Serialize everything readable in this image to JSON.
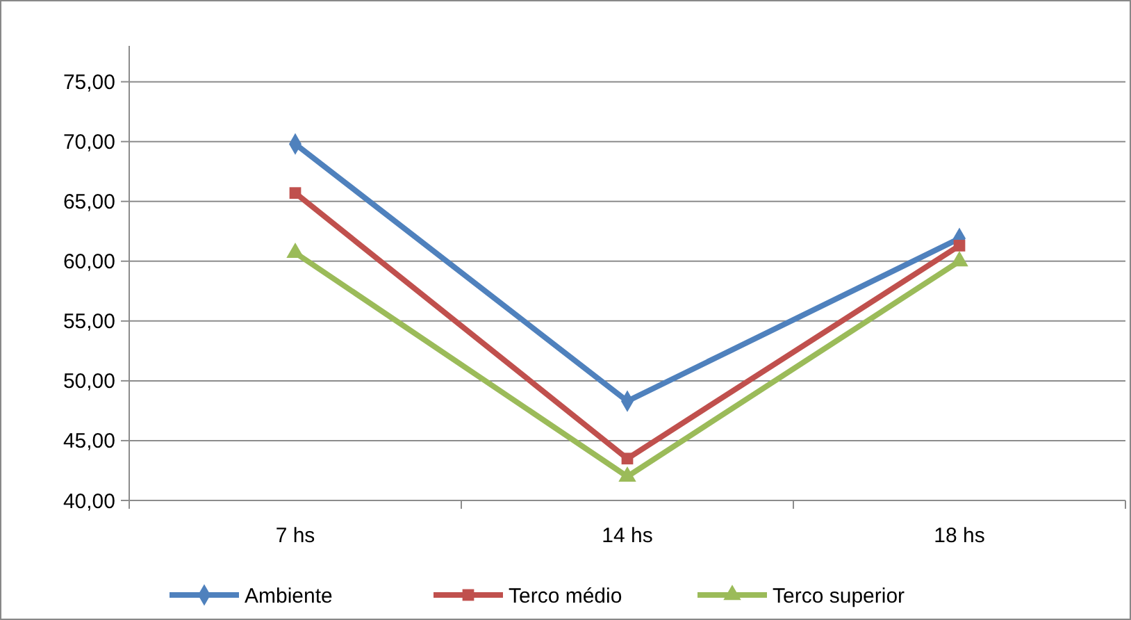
{
  "chart_data": {
    "type": "line",
    "categories": [
      "7 hs",
      "14 hs",
      "18 hs"
    ],
    "series": [
      {
        "name": "Ambiente",
        "color": "#4f81bd",
        "marker": "diamond",
        "values": [
          69.8,
          48.3,
          61.9
        ]
      },
      {
        "name": "Terco médio",
        "color": "#c0504d",
        "marker": "square",
        "values": [
          65.7,
          43.5,
          61.3
        ]
      },
      {
        "name": "Terco superior",
        "color": "#9bbb59",
        "marker": "triangle",
        "values": [
          60.7,
          42.0,
          60.0
        ]
      }
    ],
    "ylim": [
      40,
      78
    ],
    "yticks": [
      {
        "value": 40,
        "label": "40,00"
      },
      {
        "value": 45,
        "label": "45,00"
      },
      {
        "value": 50,
        "label": "50,00"
      },
      {
        "value": 55,
        "label": "55,00"
      },
      {
        "value": 60,
        "label": "60,00"
      },
      {
        "value": 65,
        "label": "65,00"
      },
      {
        "value": 70,
        "label": "70,00"
      },
      {
        "value": 75,
        "label": "75,00"
      }
    ],
    "grid": "y",
    "legend": "bottom",
    "line_style": "solid"
  }
}
